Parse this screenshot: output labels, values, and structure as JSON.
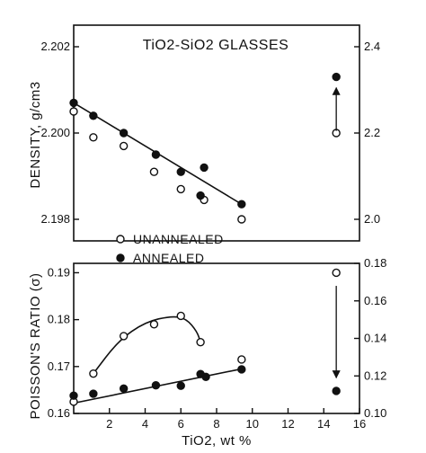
{
  "chart_data": [
    {
      "type": "scatter",
      "title": "TiO2-SiO2 GLASSES",
      "xlim": [
        0,
        16
      ],
      "ylabel": "DENSITY, g/cm3",
      "ylim": [
        2.1975,
        2.2025
      ],
      "yticks": [
        "2.198",
        "2.200",
        "2.202"
      ],
      "y2lim": [
        1.95,
        2.45
      ],
      "y2ticks": [
        "2.0",
        "2.2",
        "2.4"
      ],
      "grid": false,
      "legend_position": "bottom",
      "series": [
        {
          "name": "UNANNEALED",
          "marker": "open-circle",
          "points": [
            [
              0,
              2.2005
            ],
            [
              1.1,
              2.1999
            ],
            [
              2.8,
              2.1997
            ],
            [
              4.5,
              2.1991
            ],
            [
              6.0,
              2.1987
            ],
            [
              7.3,
              2.19845
            ],
            [
              9.4,
              2.198
            ]
          ]
        },
        {
          "name": "ANNEALED",
          "marker": "filled-circle",
          "points": [
            [
              0,
              2.2007
            ],
            [
              1.1,
              2.2004
            ],
            [
              2.8,
              2.2
            ],
            [
              4.6,
              2.1995
            ],
            [
              6.0,
              2.1991
            ],
            [
              7.1,
              2.19855
            ],
            [
              7.3,
              2.1992
            ],
            [
              9.4,
              2.19835
            ]
          ]
        },
        {
          "name": "",
          "axis": "right",
          "marker": "open-circle",
          "points": [
            [
              14.7,
              2.2
            ]
          ]
        },
        {
          "name": "",
          "axis": "right",
          "marker": "filled-circle",
          "points": [
            [
              14.7,
              2.33
            ]
          ]
        }
      ],
      "fit_lines": [
        {
          "from": [
            0,
            2.2007
          ],
          "to": [
            9.4,
            2.19835
          ]
        }
      ],
      "arrow": {
        "x": 14.7,
        "from": 2.205,
        "to": 2.305,
        "axis": "right"
      }
    },
    {
      "type": "scatter",
      "xlabel": "TiO2, wt %",
      "xlim": [
        0,
        16
      ],
      "xticks": [
        "2",
        "4",
        "6",
        "8",
        "10",
        "12",
        "14",
        "16"
      ],
      "ylabel": "POISSON'S RATIO (σ)",
      "ylim": [
        0.16,
        0.192
      ],
      "yticks": [
        "0.16",
        "0.17",
        "0.18",
        "0.19"
      ],
      "y2lim": [
        0.1,
        0.18
      ],
      "y2ticks": [
        "0.10",
        "0.12",
        "0.14",
        "0.16",
        "0.18"
      ],
      "grid": false,
      "series": [
        {
          "name": "UNANNEALED",
          "marker": "open-circle",
          "points": [
            [
              0,
              0.1625
            ],
            [
              1.1,
              0.1685
            ],
            [
              2.8,
              0.1765
            ],
            [
              4.5,
              0.179
            ],
            [
              6.0,
              0.1808
            ],
            [
              7.1,
              0.1752
            ],
            [
              9.4,
              0.1715
            ]
          ]
        },
        {
          "name": "ANNEALED",
          "marker": "filled-circle",
          "points": [
            [
              0,
              0.1638
            ],
            [
              1.1,
              0.1642
            ],
            [
              2.8,
              0.1653
            ],
            [
              4.6,
              0.166
            ],
            [
              6.0,
              0.1659
            ],
            [
              7.1,
              0.1684
            ],
            [
              7.4,
              0.1678
            ],
            [
              9.4,
              0.1694
            ]
          ]
        },
        {
          "name": "",
          "axis": "right",
          "marker": "open-circle",
          "points": [
            [
              14.7,
              0.175
            ]
          ]
        },
        {
          "name": "",
          "axis": "right",
          "marker": "filled-circle",
          "points": [
            [
              14.7,
              0.112
            ]
          ]
        }
      ],
      "fit_lines": [
        {
          "from": [
            0,
            0.1622
          ],
          "to": [
            9.4,
            0.1695
          ]
        }
      ],
      "fit_curves": [
        {
          "points": [
            [
              1.1,
              0.1685
            ],
            [
              2.5,
              0.1755
            ],
            [
              4.0,
              0.1795
            ],
            [
              5.5,
              0.1808
            ],
            [
              6.3,
              0.1802
            ],
            [
              6.9,
              0.1775
            ],
            [
              7.1,
              0.1752
            ]
          ]
        }
      ],
      "arrow": {
        "x": 14.7,
        "from": 0.168,
        "to": 0.119,
        "axis": "right"
      }
    }
  ]
}
